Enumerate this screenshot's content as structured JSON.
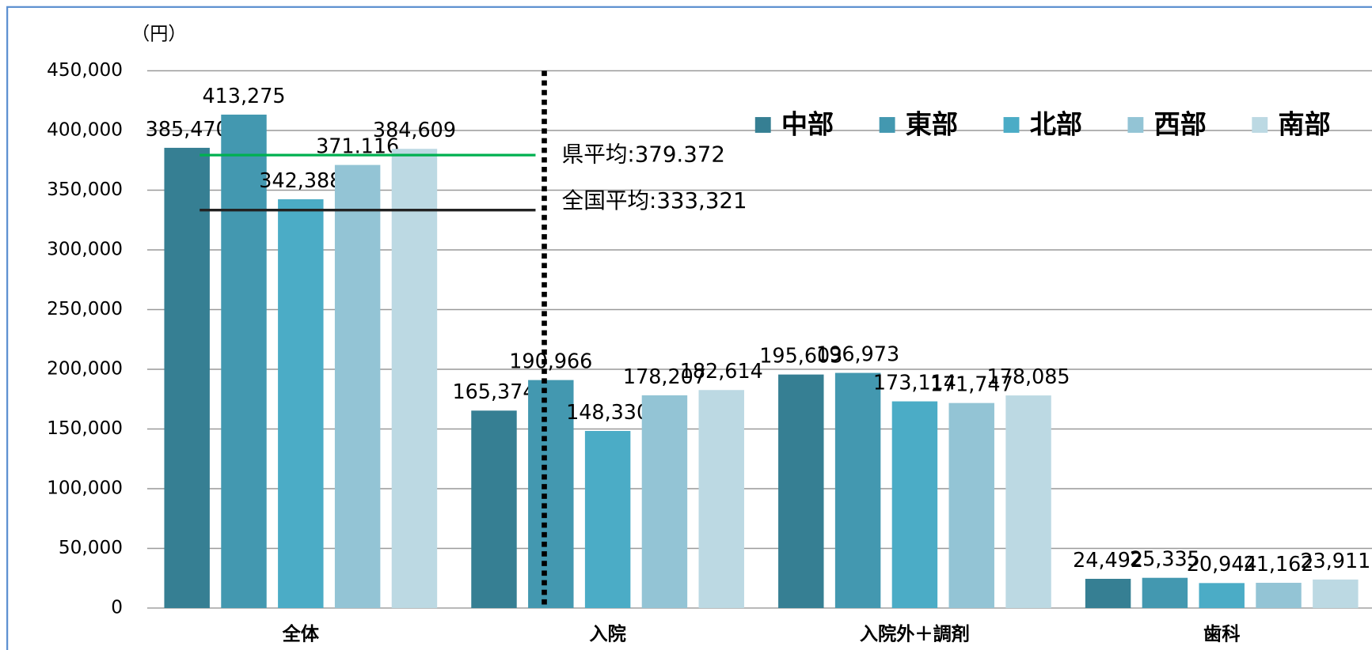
{
  "chart_data": {
    "type": "bar",
    "y_unit": "（円）",
    "categories": [
      "全体",
      "入院",
      "入院外＋調剤",
      "歯科"
    ],
    "series": [
      {
        "name": "中部",
        "color": "#367f93",
        "values": [
          385470,
          165374,
          195603,
          24492
        ]
      },
      {
        "name": "東部",
        "color": "#4398b0",
        "values": [
          413275,
          190966,
          196973,
          25335
        ]
      },
      {
        "name": "北部",
        "color": "#4bacc6",
        "values": [
          342388,
          148330,
          173114,
          20944
        ]
      },
      {
        "name": "西部",
        "color": "#93c4d5",
        "values": [
          371116,
          178207,
          171747,
          21162
        ],
        "value_labels": [
          "371.116",
          "178,207",
          "171,747",
          "21,162"
        ]
      },
      {
        "name": "南部",
        "color": "#bcd9e3",
        "values": [
          384609,
          182614,
          178085,
          23911
        ]
      }
    ],
    "reference_lines": [
      {
        "label": "県平均:379.372",
        "value": 379372,
        "color": "#00b050"
      },
      {
        "label": "全国平均:333,321",
        "value": 333321,
        "color": "#222222"
      }
    ],
    "ylim": [
      0,
      450000
    ],
    "yticks": [
      0,
      {
        "value": 50000,
        "label": "50,000"
      },
      {
        "value": 100000,
        "label": "100,000"
      },
      {
        "value": 150000,
        "label": "150,000"
      },
      {
        "value": 200000,
        "label": "200,000"
      },
      {
        "value": 250000,
        "label": "250,000"
      },
      {
        "value": 300000,
        "label": "300,000"
      },
      {
        "value": 350000,
        "label": "350,000"
      },
      {
        "value": 400000,
        "label": "400,000"
      },
      {
        "value": 450000,
        "label": "450,000"
      }
    ],
    "grid": true,
    "legend": "top-right"
  }
}
